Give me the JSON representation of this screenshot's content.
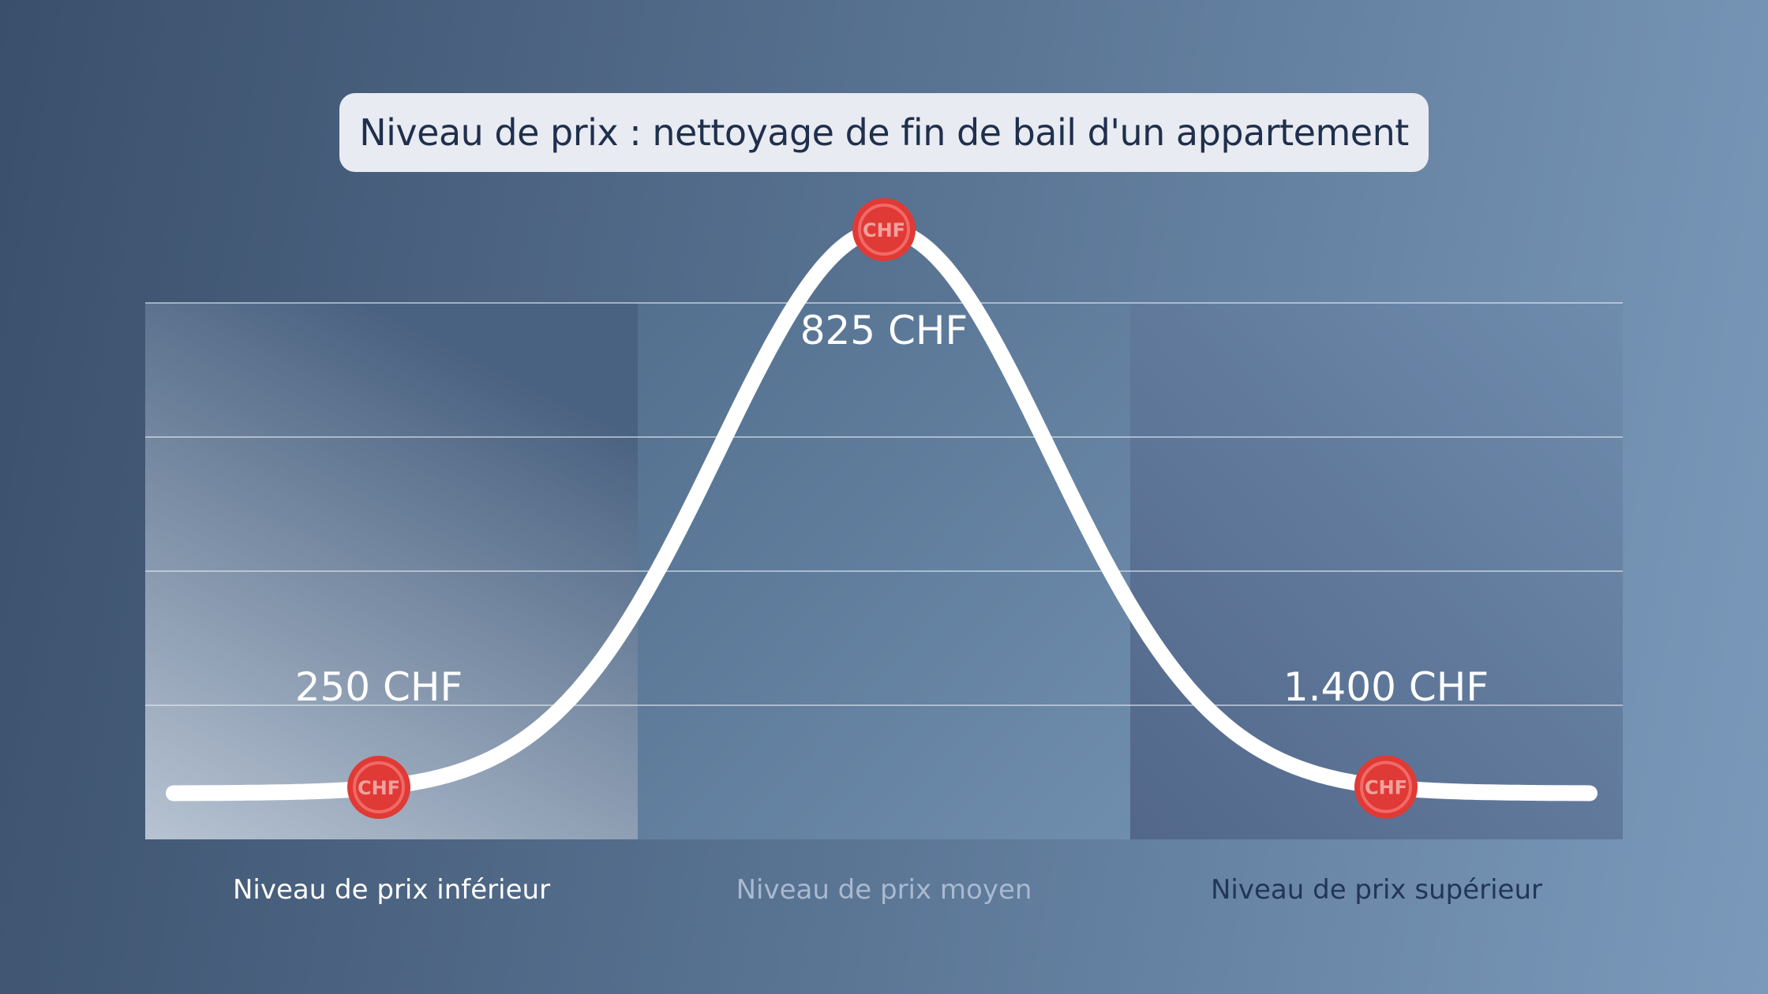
{
  "chart_data": {
    "type": "line",
    "title": "Niveau de prix : nettoyage de fin de bail d'un appartement",
    "categories": [
      "Niveau de prix inférieur",
      "Niveau de prix moyen",
      "Niveau de prix supérieur"
    ],
    "price_points": [
      {
        "level": "Niveau de prix inférieur",
        "value": 250,
        "label": "250 CHF"
      },
      {
        "level": "Niveau de prix moyen",
        "value": 825,
        "label": "825 CHF"
      },
      {
        "level": "Niveau de prix supérieur",
        "value": 1400,
        "label": "1.400 CHF"
      }
    ],
    "marker_text": "CHF",
    "grid": true,
    "colors": {
      "curve": "#ffffff",
      "marker": "#e03a36",
      "panel_low": "#b7c3d2",
      "panel_mid": "#6a88a8",
      "panel_high": "#4d6382"
    }
  }
}
